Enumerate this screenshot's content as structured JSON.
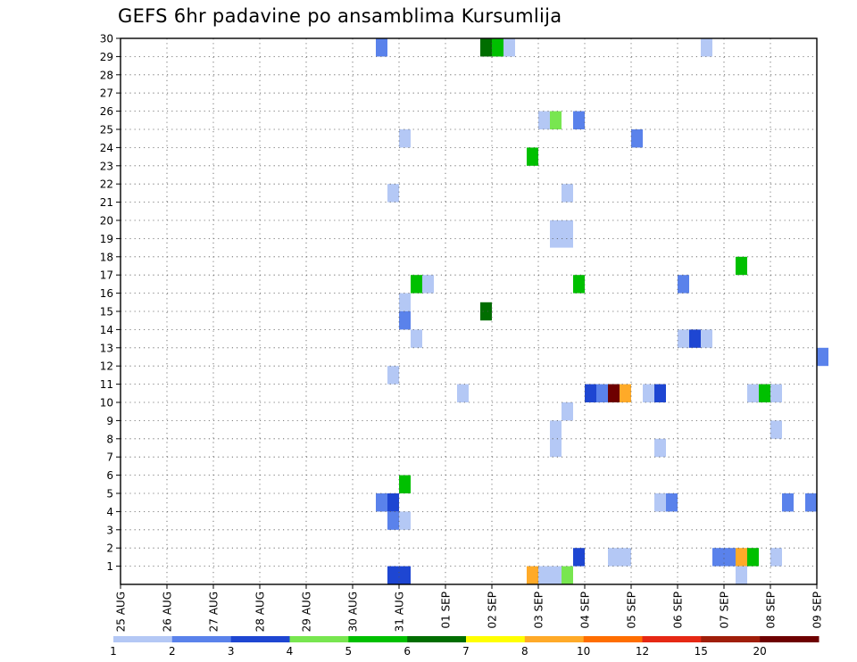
{
  "chart_data": {
    "type": "heatmap",
    "title": "GEFS 6hr padavine po ansamblima Kursumlija",
    "xlabel": "",
    "ylabel": "",
    "x_tick_labels": [
      "25 AUG",
      "26 AUG",
      "27 AUG",
      "28 AUG",
      "29 AUG",
      "30 AUG",
      "31 AUG",
      "01 SEP",
      "02 SEP",
      "03 SEP",
      "04 SEP",
      "05 SEP",
      "06 SEP",
      "07 SEP",
      "08 SEP",
      "09 SEP"
    ],
    "xlim_days": [
      0,
      15
    ],
    "y_tick_labels": [
      "1",
      "2",
      "3",
      "4",
      "5",
      "6",
      "7",
      "8",
      "9",
      "10",
      "11",
      "12",
      "13",
      "14",
      "15",
      "16",
      "17",
      "18",
      "19",
      "20",
      "21",
      "22",
      "23",
      "24",
      "25",
      "26",
      "27",
      "28",
      "29",
      "30"
    ],
    "ylim": [
      0,
      30
    ],
    "grid": true,
    "legend_placement": "bottom",
    "colorbar": {
      "labels": [
        "1",
        "2",
        "3",
        "4",
        "5",
        "6",
        "7",
        "8",
        "10",
        "12",
        "15",
        "20"
      ],
      "colors": [
        "#b4c8f5",
        "#5a82eb",
        "#1e46d2",
        "#78e650",
        "#00c000",
        "#006e00",
        "#ffff00",
        "#ffaa28",
        "#ff6e00",
        "#e62814",
        "#a01e0a",
        "#6e0000"
      ]
    },
    "cell_width_days": 0.25,
    "cells": [
      {
        "x": 5.5,
        "y": 29.5,
        "v": 2
      },
      {
        "x": 7.75,
        "y": 29.5,
        "v": 6
      },
      {
        "x": 8.0,
        "y": 29.5,
        "v": 5
      },
      {
        "x": 8.25,
        "y": 29.5,
        "v": 1
      },
      {
        "x": 12.5,
        "y": 29.5,
        "v": 1
      },
      {
        "x": 9.0,
        "y": 25.5,
        "v": 1
      },
      {
        "x": 9.25,
        "y": 25.5,
        "v": 4
      },
      {
        "x": 9.75,
        "y": 25.5,
        "v": 2
      },
      {
        "x": 6.0,
        "y": 24.5,
        "v": 1
      },
      {
        "x": 11.0,
        "y": 24.5,
        "v": 2
      },
      {
        "x": 8.75,
        "y": 23.5,
        "v": 5
      },
      {
        "x": 5.75,
        "y": 21.5,
        "v": 1
      },
      {
        "x": 9.5,
        "y": 21.5,
        "v": 1
      },
      {
        "x": 9.25,
        "y": 19.5,
        "v": 1
      },
      {
        "x": 9.5,
        "y": 19.5,
        "v": 1
      },
      {
        "x": 9.25,
        "y": 19.0,
        "v": 1
      },
      {
        "x": 9.5,
        "y": 19.0,
        "v": 1
      },
      {
        "x": 13.25,
        "y": 17.5,
        "v": 5
      },
      {
        "x": 6.25,
        "y": 16.5,
        "v": 5
      },
      {
        "x": 6.5,
        "y": 16.5,
        "v": 1
      },
      {
        "x": 9.75,
        "y": 16.5,
        "v": 5
      },
      {
        "x": 12.0,
        "y": 16.5,
        "v": 2
      },
      {
        "x": 6.0,
        "y": 15.5,
        "v": 1
      },
      {
        "x": 7.75,
        "y": 15.0,
        "v": 6
      },
      {
        "x": 6.0,
        "y": 14.5,
        "v": 2
      },
      {
        "x": 6.25,
        "y": 13.5,
        "v": 1
      },
      {
        "x": 12.0,
        "y": 13.5,
        "v": 1
      },
      {
        "x": 12.25,
        "y": 13.5,
        "v": 3
      },
      {
        "x": 12.5,
        "y": 13.5,
        "v": 1
      },
      {
        "x": 15.0,
        "y": 12.5,
        "v": 2
      },
      {
        "x": 5.75,
        "y": 11.5,
        "v": 1
      },
      {
        "x": 7.25,
        "y": 10.5,
        "v": 1
      },
      {
        "x": 10.0,
        "y": 10.5,
        "v": 3
      },
      {
        "x": 10.25,
        "y": 10.5,
        "v": 2
      },
      {
        "x": 10.5,
        "y": 10.5,
        "v": 20
      },
      {
        "x": 10.75,
        "y": 10.5,
        "v": 8
      },
      {
        "x": 11.25,
        "y": 10.5,
        "v": 1
      },
      {
        "x": 11.5,
        "y": 10.5,
        "v": 3
      },
      {
        "x": 13.5,
        "y": 10.5,
        "v": 1
      },
      {
        "x": 13.75,
        "y": 10.5,
        "v": 5
      },
      {
        "x": 14.0,
        "y": 10.5,
        "v": 1
      },
      {
        "x": 9.5,
        "y": 9.5,
        "v": 1
      },
      {
        "x": 9.25,
        "y": 8.5,
        "v": 1
      },
      {
        "x": 14.0,
        "y": 8.5,
        "v": 1
      },
      {
        "x": 9.25,
        "y": 7.5,
        "v": 1
      },
      {
        "x": 11.5,
        "y": 7.5,
        "v": 1
      },
      {
        "x": 6.0,
        "y": 5.5,
        "v": 5
      },
      {
        "x": 5.5,
        "y": 4.5,
        "v": 2
      },
      {
        "x": 5.75,
        "y": 4.5,
        "v": 3
      },
      {
        "x": 11.5,
        "y": 4.5,
        "v": 1
      },
      {
        "x": 11.75,
        "y": 4.5,
        "v": 2
      },
      {
        "x": 14.25,
        "y": 4.5,
        "v": 2
      },
      {
        "x": 14.75,
        "y": 4.5,
        "v": 2
      },
      {
        "x": 5.75,
        "y": 3.5,
        "v": 2
      },
      {
        "x": 6.0,
        "y": 3.5,
        "v": 1
      },
      {
        "x": 9.75,
        "y": 1.5,
        "v": 3
      },
      {
        "x": 10.5,
        "y": 1.5,
        "v": 1
      },
      {
        "x": 10.75,
        "y": 1.5,
        "v": 1
      },
      {
        "x": 12.75,
        "y": 1.5,
        "v": 2
      },
      {
        "x": 13.0,
        "y": 1.5,
        "v": 2
      },
      {
        "x": 13.25,
        "y": 1.5,
        "v": 8
      },
      {
        "x": 13.5,
        "y": 1.5,
        "v": 5
      },
      {
        "x": 14.0,
        "y": 1.5,
        "v": 1
      },
      {
        "x": 5.75,
        "y": 0.5,
        "v": 3
      },
      {
        "x": 6.0,
        "y": 0.5,
        "v": 3
      },
      {
        "x": 8.75,
        "y": 0.5,
        "v": 8
      },
      {
        "x": 9.0,
        "y": 0.5,
        "v": 1
      },
      {
        "x": 9.25,
        "y": 0.5,
        "v": 1
      },
      {
        "x": 9.5,
        "y": 0.5,
        "v": 4
      },
      {
        "x": 13.25,
        "y": 0.5,
        "v": 1
      }
    ]
  }
}
